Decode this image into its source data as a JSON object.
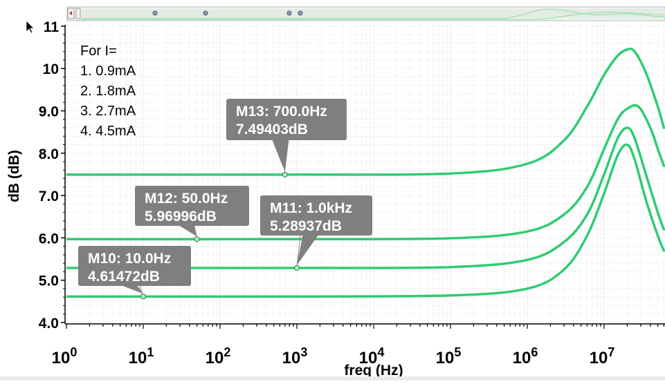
{
  "chart_data": {
    "type": "line",
    "xscale": "log",
    "xlim": [
      1,
      60000000
    ],
    "ylim": [
      4.0,
      11.0
    ],
    "xlabel": "freq (Hz)",
    "ylabel": "dB (dB)",
    "grid": true,
    "x_ticks": [
      1,
      10,
      100,
      1000,
      10000,
      100000,
      1000000,
      10000000
    ],
    "y_ticks": [
      4.0,
      5.0,
      6.0,
      7.0,
      8.0,
      9.0,
      10,
      11
    ],
    "y_tick_labels": [
      "4.0",
      "5.0",
      "6.0",
      "7.0",
      "8.0",
      "9.0",
      "10",
      "11"
    ],
    "annotation_lines": [
      "For  I=",
      "1.  0.9mA",
      "2.  1.8mA",
      "3.  2.7mA",
      "4.  4.5mA"
    ],
    "series": [
      {
        "x": [
          1,
          1000,
          100000,
          1000000,
          3000000,
          6000000,
          10000000,
          15000000,
          20000000,
          25000000,
          35000000,
          50000000,
          60000000
        ],
        "y": [
          4.61472,
          4.61472,
          4.64,
          4.8,
          5.25,
          6.05,
          7.05,
          7.95,
          8.2,
          7.85,
          6.9,
          6.05,
          5.7
        ]
      },
      {
        "x": [
          1,
          1000,
          100000,
          1000000,
          3000000,
          6000000,
          10000000,
          15000000,
          20000000,
          25000000,
          35000000,
          50000000,
          60000000
        ],
        "y": [
          5.28937,
          5.28937,
          5.31,
          5.48,
          5.9,
          6.55,
          7.5,
          8.35,
          8.6,
          8.35,
          7.5,
          6.6,
          6.2
        ]
      },
      {
        "x": [
          1,
          1000,
          100000,
          1000000,
          3000000,
          6000000,
          10000000,
          15000000,
          20000000,
          28000000,
          40000000,
          50000000,
          60000000
        ],
        "y": [
          5.96996,
          5.96996,
          5.99,
          6.15,
          6.55,
          7.2,
          8.1,
          8.8,
          9.05,
          9.1,
          8.6,
          8.1,
          7.7
        ]
      },
      {
        "x": [
          1,
          700,
          100000,
          1000000,
          3000000,
          6000000,
          10000000,
          15000000,
          20000000,
          25000000,
          35000000,
          50000000,
          60000000
        ],
        "y": [
          7.49403,
          7.49403,
          7.52,
          7.75,
          8.3,
          9.1,
          9.85,
          10.3,
          10.45,
          10.4,
          9.9,
          9.1,
          8.6
        ]
      }
    ],
    "markers": [
      {
        "name": "M10",
        "x": 10,
        "y": 4.61472,
        "line1": "M10: 10.0Hz",
        "line2": "4.61472dB"
      },
      {
        "name": "M11",
        "x": 1000,
        "y": 5.28937,
        "line1": "M11: 1.0kHz",
        "line2": "5.28937dB"
      },
      {
        "name": "M12",
        "x": 50,
        "y": 5.96996,
        "line1": "M12: 50.0Hz",
        "line2": "5.96996dB"
      },
      {
        "name": "M13",
        "x": 700,
        "y": 7.49403,
        "line1": "M13: 700.0Hz",
        "line2": "7.49403dB"
      }
    ],
    "colors": {
      "trace": "#2ecc71",
      "marker_box": "#7f7f7f",
      "marker_text": "#ffffff",
      "grid": "#d6d6d6",
      "axis": "#000000"
    }
  }
}
